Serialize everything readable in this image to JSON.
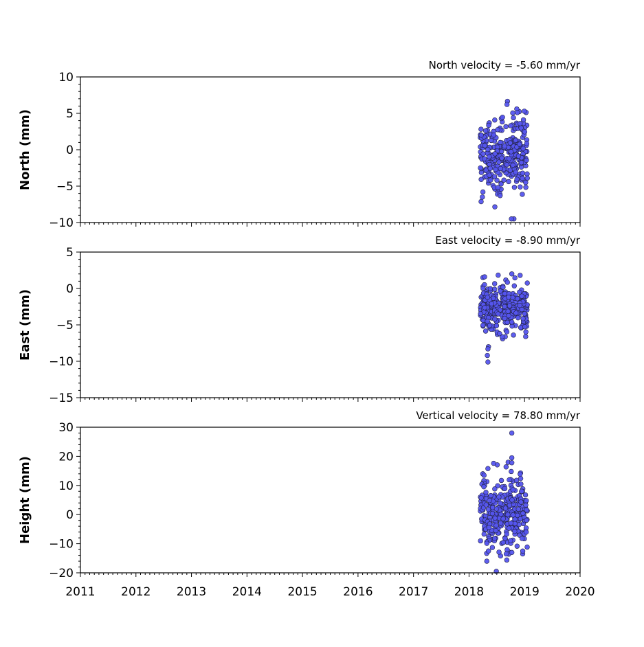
{
  "chart_data": [
    {
      "type": "scatter",
      "title": "North velocity = -5.60 mm/yr",
      "ylabel": "North (mm)",
      "xlim": [
        2011,
        2020
      ],
      "ylim": [
        -10,
        10
      ],
      "yticks": [
        10,
        5,
        0,
        -5,
        -10
      ],
      "ytick_labels": [
        "10",
        "5",
        "0",
        "−5",
        "−10"
      ],
      "grid": false,
      "series": [
        {
          "marker_color": "#5555ee",
          "edge_color": "#222244",
          "x_range": [
            2018.2,
            2019.05
          ],
          "y_mean": -0.5,
          "y_spread": 2.4,
          "n": 320,
          "points": [
            {
              "x": 2018.24,
              "y": -6.5
            },
            {
              "x": 2018.25,
              "y": -5.8
            },
            {
              "x": 2018.56,
              "y": -6.3
            },
            {
              "x": 2018.52,
              "y": -5.2
            },
            {
              "x": 2018.86,
              "y": 5.6
            },
            {
              "x": 2018.87,
              "y": 5.1
            },
            {
              "x": 2018.98,
              "y": 4.1
            },
            {
              "x": 2018.92,
              "y": 3.6
            },
            {
              "x": 2019.05,
              "y": -3.9
            },
            {
              "x": 2019.02,
              "y": -4.5
            },
            {
              "x": 2018.3,
              "y": 2.6
            },
            {
              "x": 2018.22,
              "y": 2.0
            },
            {
              "x": 2018.75,
              "y": 3.3
            },
            {
              "x": 2018.8,
              "y": 4.4
            }
          ]
        }
      ]
    },
    {
      "type": "scatter",
      "title": "East velocity = -8.90 mm/yr",
      "ylabel": "East (mm)",
      "xlim": [
        2011,
        2020
      ],
      "ylim": [
        -15,
        5
      ],
      "yticks": [
        5,
        0,
        -5,
        -10,
        -15
      ],
      "ytick_labels": [
        "5",
        "0",
        "−5",
        "−10",
        "−15"
      ],
      "grid": false,
      "series": [
        {
          "marker_color": "#5555ee",
          "edge_color": "#222244",
          "x_range": [
            2018.2,
            2019.05
          ],
          "y_mean": -2.6,
          "y_spread": 1.6,
          "n": 320,
          "points": [
            {
              "x": 2018.34,
              "y": -10.1
            },
            {
              "x": 2018.33,
              "y": -9.2
            },
            {
              "x": 2018.35,
              "y": -8.0
            },
            {
              "x": 2018.34,
              "y": -8.3
            },
            {
              "x": 2018.77,
              "y": 2.0
            },
            {
              "x": 2018.92,
              "y": 1.8
            },
            {
              "x": 2018.25,
              "y": 1.5
            },
            {
              "x": 2018.28,
              "y": 1.6
            },
            {
              "x": 2019.02,
              "y": -6.6
            },
            {
              "x": 2018.8,
              "y": -6.4
            },
            {
              "x": 2018.33,
              "y": -4.5
            },
            {
              "x": 2018.55,
              "y": -6.2
            }
          ]
        }
      ]
    },
    {
      "type": "scatter",
      "title": "Vertical velocity = 78.80 mm/yr",
      "ylabel": "Height (mm)",
      "xlim": [
        2011,
        2020
      ],
      "ylim": [
        -20,
        30
      ],
      "yticks": [
        30,
        20,
        10,
        0,
        -10,
        -20
      ],
      "ytick_labels": [
        "30",
        "20",
        "10",
        "0",
        "−10",
        "−20"
      ],
      "xticks": [
        2011,
        2012,
        2013,
        2014,
        2015,
        2016,
        2017,
        2018,
        2019,
        2020
      ],
      "xtick_labels": [
        "2011",
        "2012",
        "2013",
        "2014",
        "2015",
        "2016",
        "2017",
        "2018",
        "2019",
        "2020"
      ],
      "grid": false,
      "series": [
        {
          "marker_color": "#5555ee",
          "edge_color": "#222244",
          "x_range": [
            2018.2,
            2019.05
          ],
          "y_mean": 0.5,
          "y_spread": 5.5,
          "n": 320,
          "points": [
            {
              "x": 2018.77,
              "y": 28.0
            },
            {
              "x": 2018.77,
              "y": 19.5
            },
            {
              "x": 2018.77,
              "y": 17.8
            },
            {
              "x": 2018.76,
              "y": 14.8
            },
            {
              "x": 2018.34,
              "y": 15.8
            },
            {
              "x": 2018.27,
              "y": 13.5
            },
            {
              "x": 2018.92,
              "y": 13.9
            },
            {
              "x": 2018.93,
              "y": 12.4
            },
            {
              "x": 2018.68,
              "y": -15.6
            },
            {
              "x": 2018.67,
              "y": -13.5
            },
            {
              "x": 2018.77,
              "y": -13.0
            },
            {
              "x": 2018.54,
              "y": -12.9
            },
            {
              "x": 2018.35,
              "y": -12.5
            },
            {
              "x": 2018.42,
              "y": -11.3
            },
            {
              "x": 2019.03,
              "y": -6.0
            }
          ]
        }
      ]
    }
  ]
}
